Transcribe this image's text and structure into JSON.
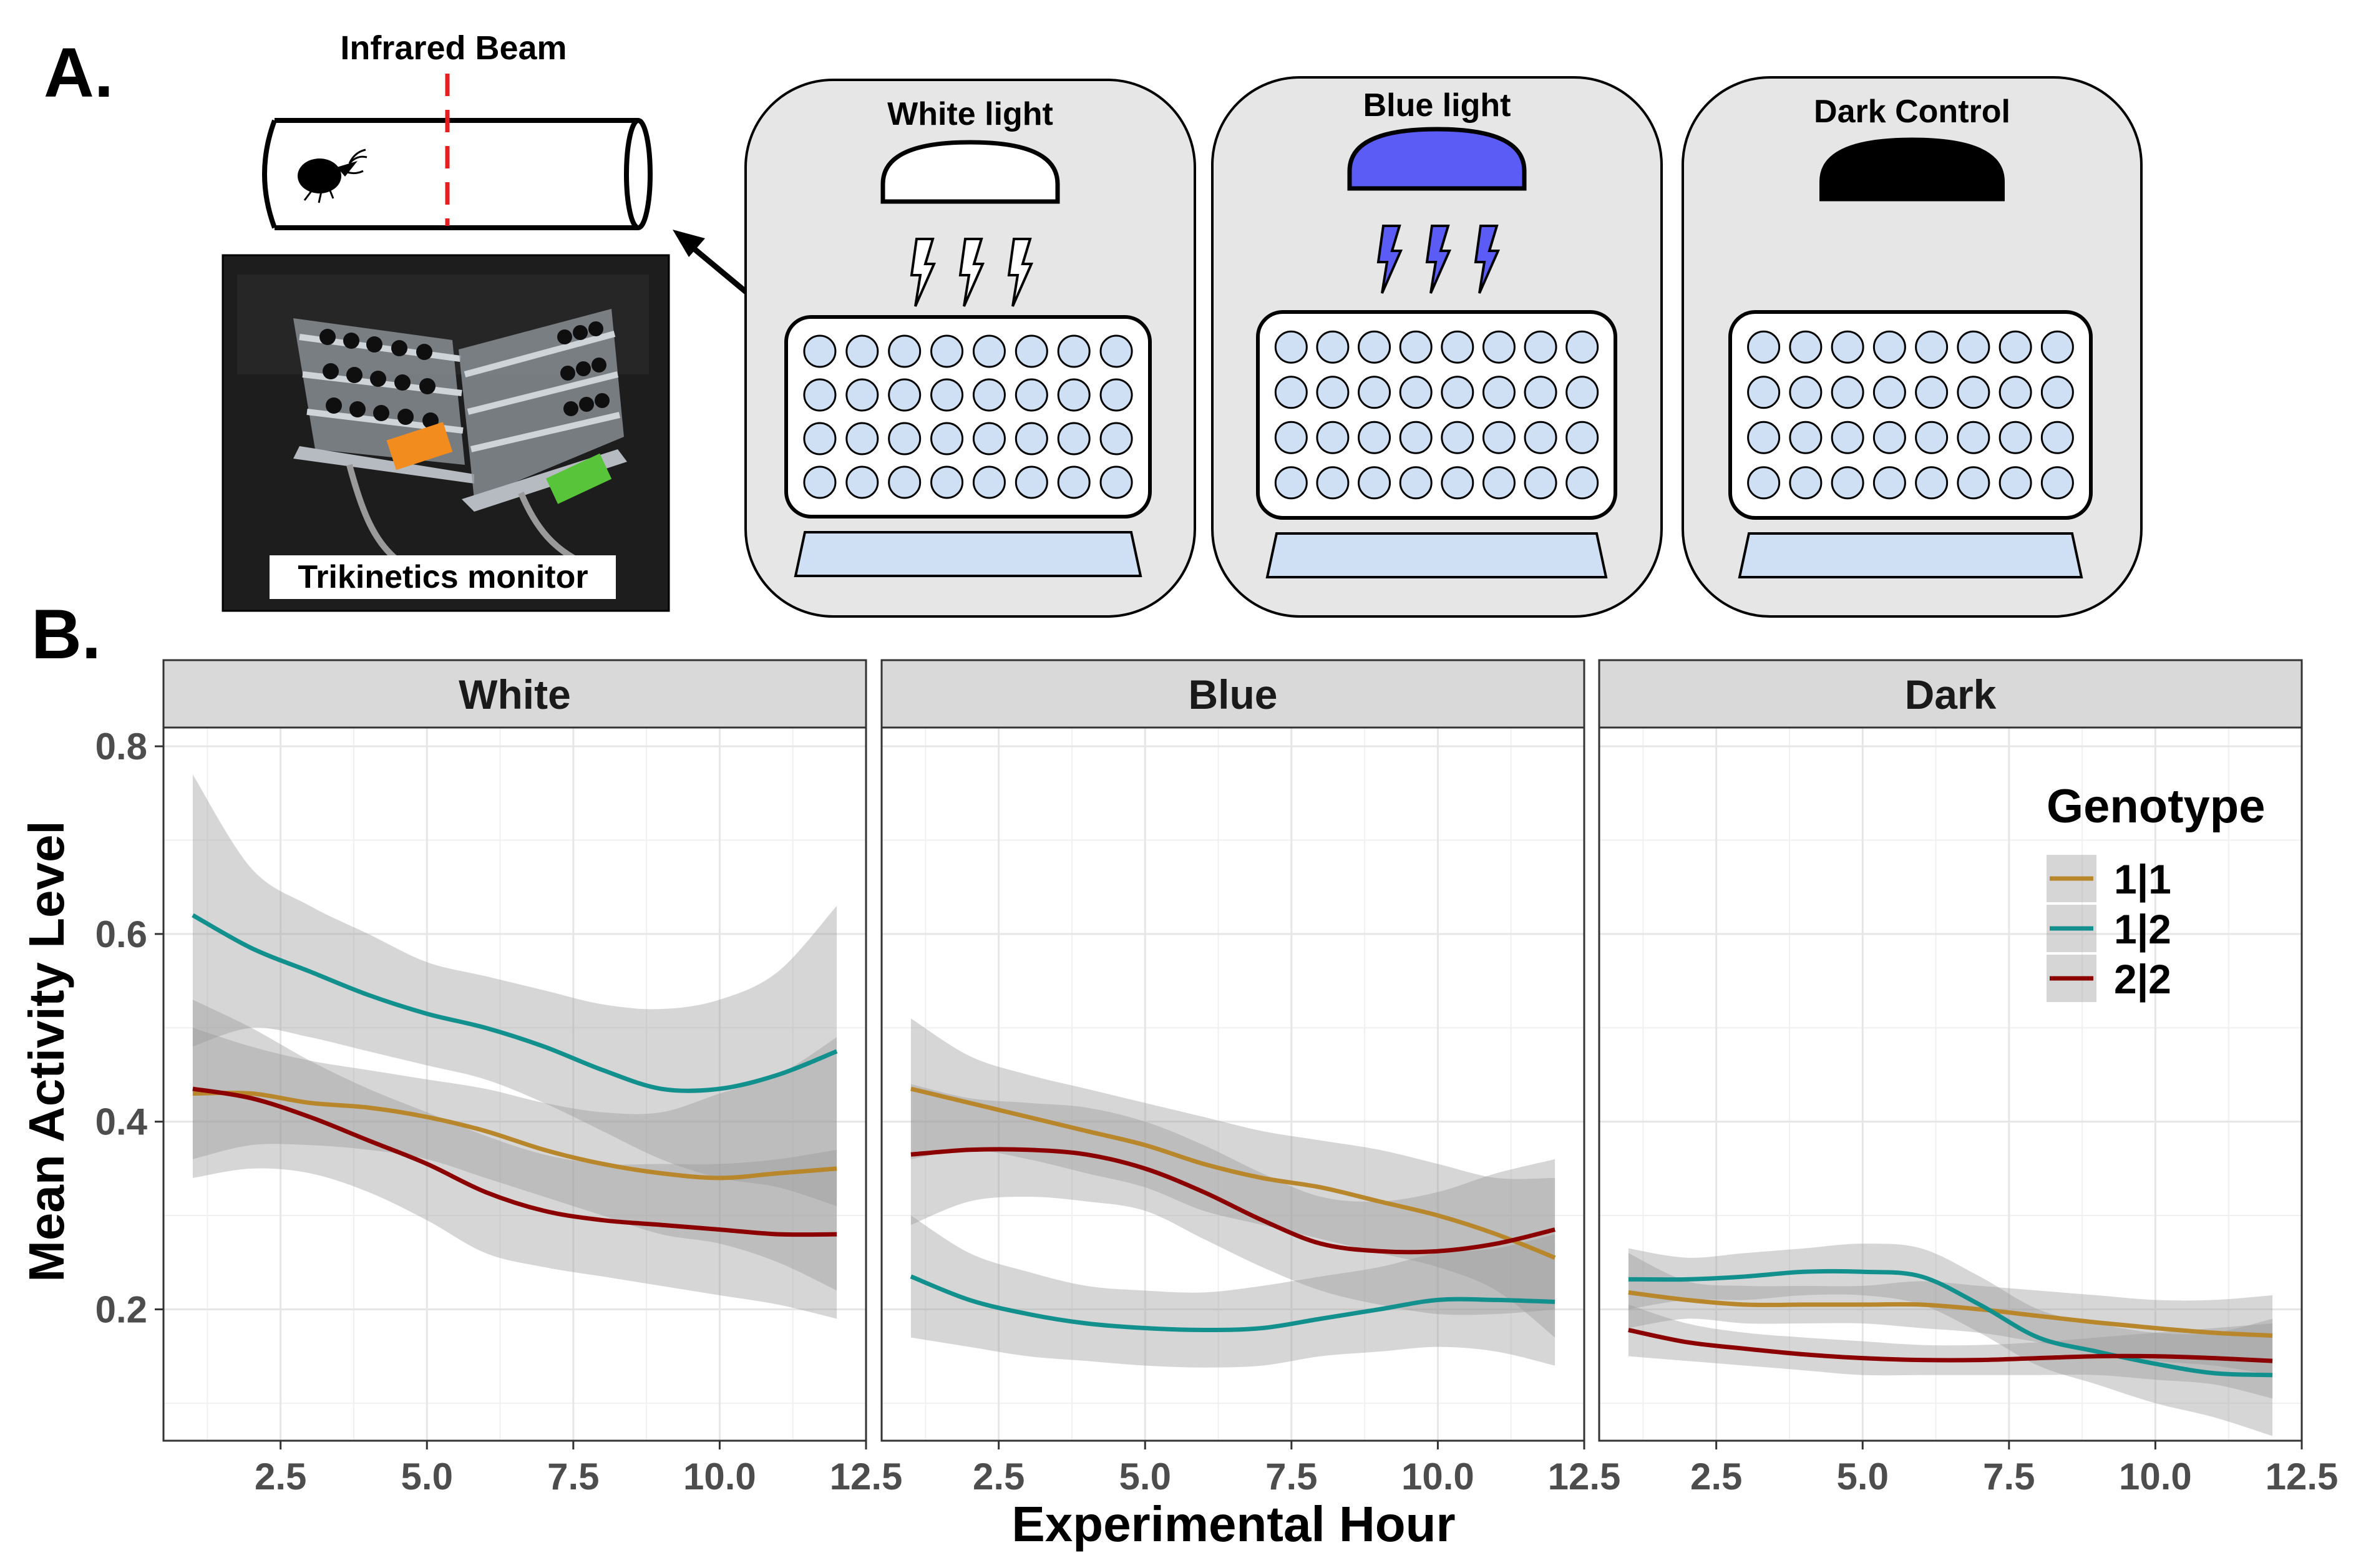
{
  "figure": {
    "panel_a_label": "A.",
    "panel_b_label": "B.",
    "beam_label": "Infrared Beam",
    "monitor_label": "Trikinetics monitor",
    "chambers": [
      {
        "label": "White light",
        "lamp_color": "#ffffff"
      },
      {
        "label": "Blue light",
        "lamp_color": "#5b5bf5"
      },
      {
        "label": "Dark Control",
        "lamp_color": "#000000"
      }
    ]
  },
  "chart_data": {
    "type": "line",
    "xlabel": "Experimental Hour",
    "ylabel": "Mean Activity Level",
    "xlim": [
      0.5,
      12.5
    ],
    "ylim": [
      0.06,
      0.82
    ],
    "xticks": [
      2.5,
      5.0,
      7.5,
      10.0,
      12.5
    ],
    "xtick_labels": [
      "2.5",
      "5.0",
      "7.5",
      "10.0",
      "12.5"
    ],
    "yticks": [
      0.2,
      0.4,
      0.6,
      0.8
    ],
    "ytick_labels": [
      "0.2",
      "0.4",
      "0.6",
      "0.8"
    ],
    "grid": true,
    "legend": {
      "title": "Genotype",
      "placement": "top-right (inside Dark panel)"
    },
    "series_colors": {
      "1|1": "#b8862b",
      "1|2": "#12908e",
      "2|2": "#8b0000"
    },
    "facets": [
      {
        "name": "White",
        "x": [
          1,
          2,
          3,
          4,
          5,
          6,
          7,
          8,
          9,
          10,
          11,
          12
        ],
        "series": [
          {
            "name": "1|1",
            "values": [
              0.43,
              0.43,
              0.42,
              0.415,
              0.405,
              0.39,
              0.37,
              0.355,
              0.345,
              0.34,
              0.345,
              0.35
            ],
            "lower": [
              0.36,
              0.375,
              0.375,
              0.37,
              0.36,
              0.34,
              0.32,
              0.3,
              0.28,
              0.27,
              0.25,
              0.22
            ],
            "upper": [
              0.5,
              0.48,
              0.465,
              0.455,
              0.445,
              0.435,
              0.42,
              0.41,
              0.41,
              0.43,
              0.45,
              0.49
            ]
          },
          {
            "name": "1|2",
            "values": [
              0.62,
              0.585,
              0.56,
              0.535,
              0.515,
              0.5,
              0.48,
              0.455,
              0.435,
              0.435,
              0.45,
              0.475
            ],
            "lower": [
              0.48,
              0.5,
              0.49,
              0.475,
              0.46,
              0.445,
              0.42,
              0.39,
              0.36,
              0.34,
              0.33,
              0.31
            ],
            "upper": [
              0.77,
              0.67,
              0.63,
              0.6,
              0.57,
              0.555,
              0.54,
              0.525,
              0.52,
              0.53,
              0.56,
              0.63
            ]
          },
          {
            "name": "2|2",
            "values": [
              0.435,
              0.425,
              0.405,
              0.38,
              0.355,
              0.325,
              0.305,
              0.295,
              0.29,
              0.285,
              0.28,
              0.28
            ],
            "lower": [
              0.34,
              0.35,
              0.345,
              0.325,
              0.295,
              0.26,
              0.245,
              0.235,
              0.225,
              0.215,
              0.205,
              0.19
            ],
            "upper": [
              0.53,
              0.5,
              0.465,
              0.435,
              0.41,
              0.385,
              0.365,
              0.355,
              0.355,
              0.355,
              0.36,
              0.37
            ]
          }
        ]
      },
      {
        "name": "Blue",
        "x": [
          1,
          2,
          3,
          4,
          5,
          6,
          7,
          8,
          9,
          10,
          11,
          12
        ],
        "series": [
          {
            "name": "1|1",
            "values": [
              0.435,
              0.42,
              0.405,
              0.39,
              0.375,
              0.355,
              0.34,
              0.33,
              0.315,
              0.3,
              0.28,
              0.255
            ],
            "lower": [
              0.36,
              0.37,
              0.36,
              0.345,
              0.33,
              0.305,
              0.29,
              0.275,
              0.26,
              0.245,
              0.22,
              0.17
            ],
            "upper": [
              0.51,
              0.47,
              0.45,
              0.435,
              0.42,
              0.405,
              0.39,
              0.38,
              0.37,
              0.355,
              0.34,
              0.34
            ]
          },
          {
            "name": "1|2",
            "values": [
              0.235,
              0.21,
              0.195,
              0.185,
              0.18,
              0.178,
              0.18,
              0.19,
              0.2,
              0.21,
              0.21,
              0.208
            ],
            "lower": [
              0.17,
              0.16,
              0.15,
              0.145,
              0.14,
              0.138,
              0.14,
              0.15,
              0.155,
              0.16,
              0.155,
              0.14
            ],
            "upper": [
              0.3,
              0.26,
              0.24,
              0.225,
              0.22,
              0.218,
              0.225,
              0.235,
              0.245,
              0.26,
              0.265,
              0.28
            ]
          },
          {
            "name": "2|2",
            "values": [
              0.365,
              0.37,
              0.37,
              0.365,
              0.35,
              0.325,
              0.295,
              0.27,
              0.262,
              0.262,
              0.27,
              0.285
            ],
            "lower": [
              0.29,
              0.315,
              0.32,
              0.315,
              0.305,
              0.275,
              0.245,
              0.22,
              0.205,
              0.195,
              0.195,
              0.2
            ],
            "upper": [
              0.44,
              0.425,
              0.42,
              0.415,
              0.4,
              0.375,
              0.345,
              0.32,
              0.315,
              0.325,
              0.345,
              0.36
            ]
          }
        ]
      },
      {
        "name": "Dark",
        "x": [
          1,
          2,
          3,
          4,
          5,
          6,
          7,
          8,
          9,
          10,
          11,
          12
        ],
        "series": [
          {
            "name": "1|1",
            "values": [
              0.218,
              0.21,
              0.205,
              0.205,
              0.205,
              0.205,
              0.2,
              0.193,
              0.186,
              0.18,
              0.175,
              0.172
            ],
            "lower": [
              0.18,
              0.19,
              0.185,
              0.185,
              0.185,
              0.18,
              0.175,
              0.165,
              0.155,
              0.145,
              0.14,
              0.13
            ],
            "upper": [
              0.26,
              0.23,
              0.225,
              0.225,
              0.225,
              0.23,
              0.225,
              0.22,
              0.215,
              0.21,
              0.21,
              0.215
            ]
          },
          {
            "name": "1|2",
            "values": [
              0.232,
              0.232,
              0.235,
              0.24,
              0.24,
              0.235,
              0.205,
              0.17,
              0.155,
              0.142,
              0.132,
              0.13
            ],
            "lower": [
              0.2,
              0.21,
              0.21,
              0.215,
              0.215,
              0.205,
              0.175,
              0.14,
              0.12,
              0.1,
              0.085,
              0.065
            ],
            "upper": [
              0.265,
              0.255,
              0.26,
              0.265,
              0.27,
              0.265,
              0.235,
              0.2,
              0.185,
              0.175,
              0.175,
              0.19
            ]
          },
          {
            "name": "2|2",
            "values": [
              0.178,
              0.165,
              0.158,
              0.152,
              0.148,
              0.146,
              0.146,
              0.148,
              0.15,
              0.15,
              0.148,
              0.145
            ],
            "lower": [
              0.15,
              0.145,
              0.14,
              0.135,
              0.13,
              0.13,
              0.13,
              0.13,
              0.13,
              0.125,
              0.12,
              0.105
            ],
            "upper": [
              0.205,
              0.185,
              0.175,
              0.17,
              0.166,
              0.162,
              0.162,
              0.165,
              0.17,
              0.175,
              0.18,
              0.185
            ]
          }
        ]
      }
    ]
  }
}
